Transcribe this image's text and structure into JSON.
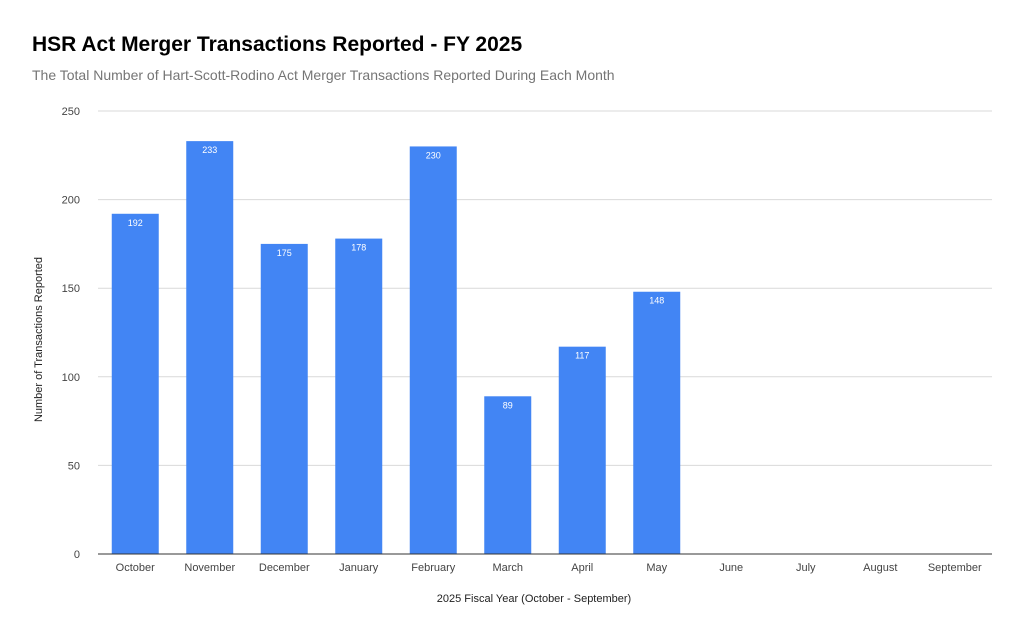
{
  "title": "HSR Act Merger Transactions Reported - FY 2025",
  "subtitle": "The Total Number of Hart-Scott-Rodino Act Merger Transactions Reported During Each Month",
  "colors": {
    "bar": "#4285f4",
    "grid": "#d9d9d9",
    "axis": "#333333"
  },
  "chart_data": {
    "type": "bar",
    "title": "HSR Act Merger Transactions Reported - FY 2025",
    "subtitle": "The Total Number of Hart-Scott-Rodino Act Merger Transactions Reported During Each Month",
    "xlabel": "2025 Fiscal Year (October - September)",
    "ylabel": "Number of Transactions Reported",
    "categories": [
      "October",
      "November",
      "December",
      "January",
      "February",
      "March",
      "April",
      "May",
      "June",
      "July",
      "August",
      "September"
    ],
    "values": [
      192,
      233,
      175,
      178,
      230,
      89,
      117,
      148,
      null,
      null,
      null,
      null
    ],
    "ylim": [
      0,
      250
    ],
    "yticks": [
      0,
      50,
      100,
      150,
      200,
      250
    ],
    "grid": true,
    "legend": "none"
  }
}
